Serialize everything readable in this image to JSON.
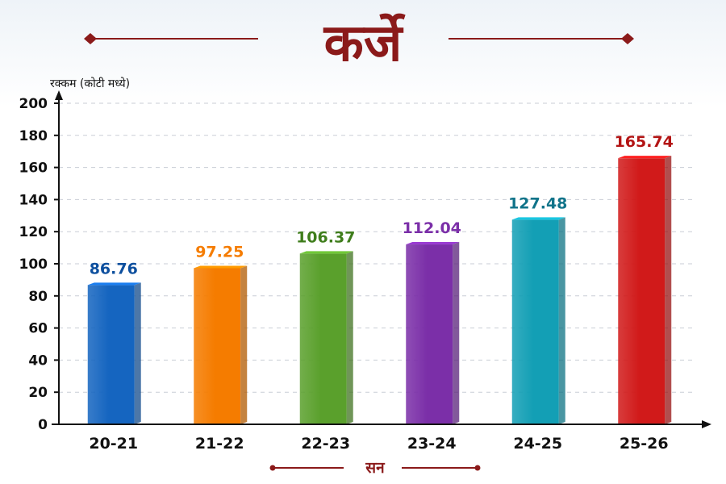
{
  "title": "कर्जे",
  "colors": {
    "title": "#8b1a1a",
    "decoration": "#8b1a1a",
    "bars": [
      "#1565c0",
      "#f57c00",
      "#5aa02c",
      "#7b2fa8",
      "#139fb5",
      "#d11a1a"
    ]
  },
  "chart_data": {
    "type": "bar",
    "title": "कर्जे",
    "xlabel": "सन",
    "ylabel": "रक्कम (कोटी मध्ये)",
    "categories": [
      "20-21",
      "21-22",
      "22-23",
      "23-24",
      "24-25",
      "25-26"
    ],
    "values": [
      86.76,
      97.25,
      106.37,
      112.04,
      127.48,
      165.74
    ],
    "value_labels": [
      "86.76",
      "97.25",
      "106.37",
      "112.04",
      "127.48",
      "165.74"
    ],
    "ylim": [
      0,
      200
    ],
    "yticks": [
      0,
      20,
      40,
      60,
      80,
      100,
      120,
      140,
      160,
      180,
      200
    ],
    "grid": true,
    "legend": "none"
  }
}
